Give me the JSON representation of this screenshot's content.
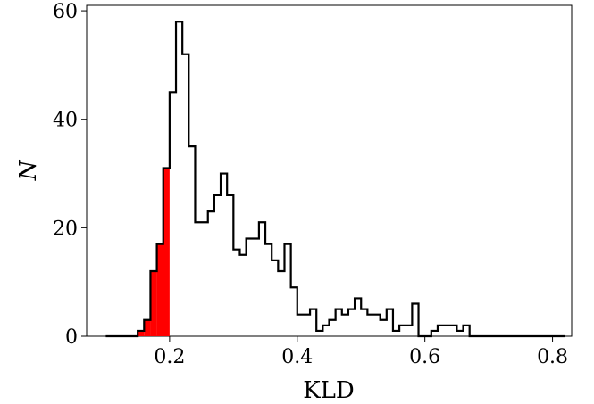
{
  "chart_data": {
    "type": "histogram",
    "xlabel": "KLD",
    "ylabel": "N",
    "xlim": [
      0.07,
      0.83
    ],
    "ylim": [
      0,
      61
    ],
    "grid": false,
    "xticks": [
      0.2,
      0.4,
      0.6,
      0.8
    ],
    "xtick_labels": [
      "0.2",
      "0.4",
      "0.6",
      "0.8"
    ],
    "yticks": [
      0,
      20,
      40,
      60
    ],
    "ytick_labels": [
      "0",
      "20",
      "40",
      "60"
    ],
    "bin_start": 0.1,
    "bin_width": 0.01,
    "counts": [
      0,
      0,
      0,
      0,
      0,
      1,
      3,
      12,
      17,
      31,
      45,
      58,
      52,
      35,
      21,
      21,
      23,
      26,
      30,
      26,
      16,
      15,
      18,
      18,
      21,
      17,
      14,
      12,
      17,
      9,
      4,
      4,
      5,
      1,
      2,
      3,
      5,
      4,
      5,
      7,
      5,
      4,
      4,
      3,
      5,
      1,
      2,
      2,
      6,
      0,
      0,
      1,
      2,
      2,
      2,
      1,
      2,
      0,
      0,
      0,
      0,
      0,
      0,
      0,
      0,
      0,
      0,
      0,
      0,
      0,
      0,
      0
    ],
    "highlight": {
      "color": "#ff0000",
      "bins": [
        5,
        6,
        7,
        8,
        9
      ]
    },
    "outline_color": "#000000"
  }
}
